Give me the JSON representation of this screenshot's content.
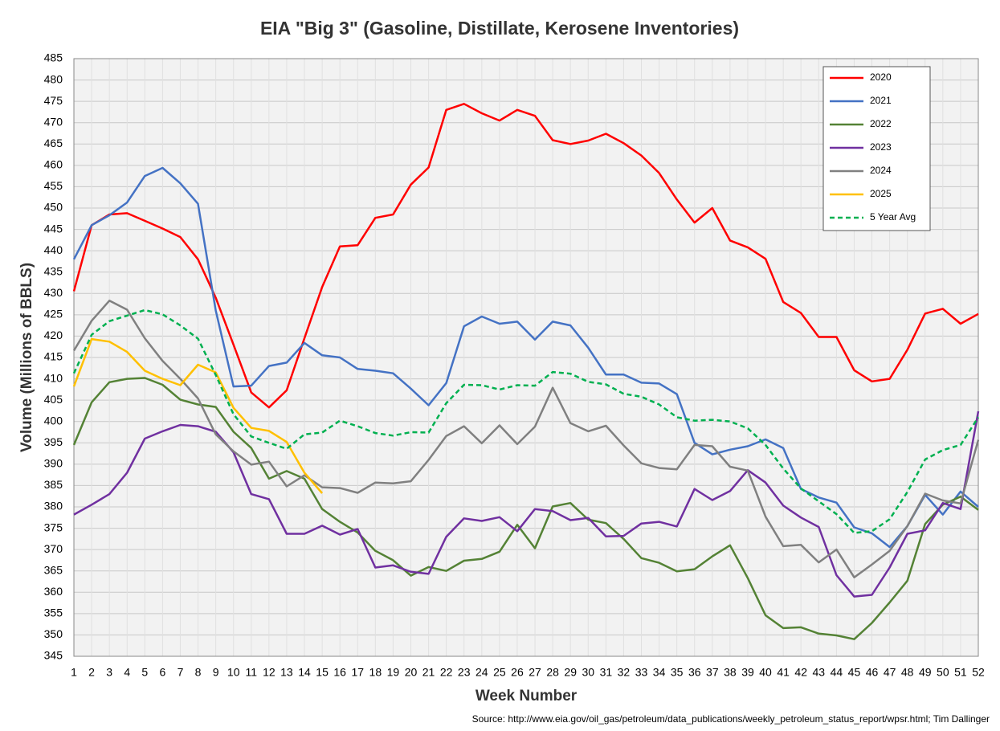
{
  "chart_data": {
    "type": "line",
    "title": "EIA \"Big 3\" (Gasoline, Distillate, Kerosene Inventories)",
    "x_label": "Week Number",
    "y_label": "Volume (Millions of BBLS)",
    "source": "Source: http://www.eia.gov/oil_gas/petroleum/data_publications/weekly_petroleum_status_report/wpsr.html; Tim Dallinger",
    "x": [
      1,
      2,
      3,
      4,
      5,
      6,
      7,
      8,
      9,
      10,
      11,
      12,
      13,
      14,
      15,
      16,
      17,
      18,
      19,
      20,
      21,
      22,
      23,
      24,
      25,
      26,
      27,
      28,
      29,
      30,
      31,
      32,
      33,
      34,
      35,
      36,
      37,
      38,
      39,
      40,
      41,
      42,
      43,
      44,
      45,
      46,
      47,
      48,
      49,
      50,
      51,
      52
    ],
    "xlim": [
      1,
      52
    ],
    "xticks": [
      1,
      2,
      3,
      4,
      5,
      6,
      7,
      8,
      9,
      10,
      11,
      12,
      13,
      14,
      15,
      16,
      17,
      18,
      19,
      20,
      21,
      22,
      23,
      24,
      25,
      26,
      27,
      28,
      29,
      30,
      31,
      32,
      33,
      34,
      35,
      36,
      37,
      38,
      39,
      40,
      41,
      42,
      43,
      44,
      45,
      46,
      47,
      48,
      49,
      50,
      51,
      52
    ],
    "ylim": [
      345,
      485
    ],
    "yticks": [
      345,
      350,
      355,
      360,
      365,
      370,
      375,
      380,
      385,
      390,
      395,
      400,
      405,
      410,
      415,
      420,
      425,
      430,
      435,
      440,
      445,
      450,
      455,
      460,
      465,
      470,
      475,
      480,
      485
    ],
    "grid": true,
    "legend": "top-right",
    "series": [
      {
        "name": "2020",
        "color": "#ff0000",
        "values": [
          430.5,
          446,
          448.5,
          448.8,
          447,
          445.2,
          443.2,
          438,
          429,
          418,
          406.8,
          403.3,
          407.3,
          419.5,
          431.5,
          441,
          441.3,
          447.7,
          448.5,
          455.5,
          459.5,
          473,
          474.4,
          472.2,
          470.5,
          473,
          471.6,
          465.9,
          465,
          465.8,
          467.4,
          465.2,
          462.3,
          458.2,
          452,
          446.6,
          450,
          442.4,
          440.8,
          438.1,
          428,
          425.4,
          419.8,
          419.8,
          412,
          409.4,
          410,
          416.8,
          425.3,
          426.4,
          422.9,
          425.2
        ]
      },
      {
        "name": "2021",
        "color": "#4472c4",
        "values": [
          438,
          446,
          448.3,
          451.3,
          457.5,
          459.4,
          455.8,
          451,
          426,
          408.2,
          408.4,
          413,
          413.8,
          418.4,
          415.5,
          415,
          412.3,
          411.9,
          411.3,
          407.7,
          403.8,
          409,
          422.3,
          424.6,
          422.9,
          423.4,
          419.2,
          423.4,
          422.5,
          417.3,
          411,
          411,
          409.1,
          408.9,
          406.4,
          395,
          392.3,
          393.4,
          394.2,
          395.8,
          393.8,
          384.2,
          382.2,
          381,
          375.2,
          373.8,
          370.6,
          375.5,
          382.8,
          378.2,
          383.6,
          380
        ]
      },
      {
        "name": "2022",
        "color": "#548235",
        "values": [
          394.5,
          404.5,
          409.2,
          410,
          410.2,
          408.6,
          405.1,
          404,
          403.4,
          397.6,
          393.8,
          386.6,
          388.4,
          386.6,
          379.5,
          376.5,
          374,
          369.7,
          367.5,
          363.9,
          365.9,
          365,
          367.4,
          367.8,
          369.5,
          375.8,
          370.3,
          380.1,
          380.9,
          377,
          376.2,
          372.5,
          368,
          366.9,
          364.9,
          365.4,
          368.4,
          371,
          363.3,
          354.6,
          351.6,
          351.8,
          350.3,
          349.9,
          349,
          352.8,
          357.6,
          362.7,
          376,
          380.5,
          382.4,
          379.3
        ]
      },
      {
        "name": "2023",
        "color": "#7030a0",
        "values": [
          378.2,
          380.5,
          383,
          388,
          396,
          397.7,
          399.2,
          398.9,
          397.6,
          392.8,
          383,
          381.8,
          373.7,
          373.7,
          375.6,
          373.5,
          374.8,
          365.8,
          366.3,
          364.8,
          364.3,
          373,
          377.3,
          376.7,
          377.6,
          374.3,
          379.5,
          379,
          376.9,
          377.4,
          373.1,
          373.2,
          376.1,
          376.5,
          375.4,
          384.2,
          381.6,
          383.7,
          388.6,
          385.7,
          380.3,
          377.5,
          375.3,
          364,
          359,
          359.4,
          365.8,
          373.7,
          374.5,
          380.9,
          379.5,
          402.4
        ]
      },
      {
        "name": "2024",
        "color": "#808080",
        "values": [
          416.6,
          423.6,
          428.3,
          426.2,
          419.5,
          414.2,
          410,
          405.4,
          397,
          393,
          389.9,
          390.6,
          384.8,
          387.4,
          384.6,
          384.4,
          383.3,
          385.7,
          385.5,
          386,
          391,
          396.6,
          398.9,
          394.9,
          399.1,
          394.7,
          398.8,
          407.9,
          399.6,
          397.7,
          399,
          394.4,
          390.2,
          389.1,
          388.8,
          394.5,
          394.2,
          389.4,
          388.5,
          377.7,
          370.8,
          371.1,
          367,
          370,
          363.5,
          366.5,
          369.7,
          375.5,
          383.1,
          381.5,
          380.8,
          395.7
        ]
      },
      {
        "name": "2025",
        "color": "#ffc000",
        "values": [
          408.2,
          419.3,
          418.7,
          416.3,
          411.9,
          410,
          408.5,
          413.3,
          411.5,
          403.2,
          398.5,
          397.8,
          395.2,
          388,
          383.2,
          null,
          null,
          null,
          null,
          null,
          null,
          null,
          null,
          null,
          null,
          null,
          null,
          null,
          null,
          null,
          null,
          null,
          null,
          null,
          null,
          null,
          null,
          null,
          null,
          null,
          null,
          null,
          null,
          null,
          null,
          null,
          null,
          null,
          null,
          null,
          null,
          null
        ]
      },
      {
        "name": "5 Year Avg",
        "color": "#00b050",
        "dashed": true,
        "values": [
          411.3,
          420.3,
          423.5,
          424.8,
          426.1,
          425.1,
          422.5,
          419.4,
          410.9,
          401.7,
          396.5,
          395,
          393.6,
          397,
          397.4,
          400.2,
          398.9,
          397.3,
          396.7,
          397.5,
          397.4,
          404.3,
          408.6,
          408.5,
          407.5,
          408.5,
          408.4,
          411.6,
          411.2,
          409.3,
          408.7,
          406.5,
          405.8,
          404,
          401,
          400.2,
          400.4,
          400,
          398.4,
          394.5,
          389,
          384.3,
          381.3,
          378.3,
          373.9,
          374.3,
          377.1,
          383.5,
          391.1,
          393.3,
          394.5,
          401
        ]
      }
    ]
  }
}
